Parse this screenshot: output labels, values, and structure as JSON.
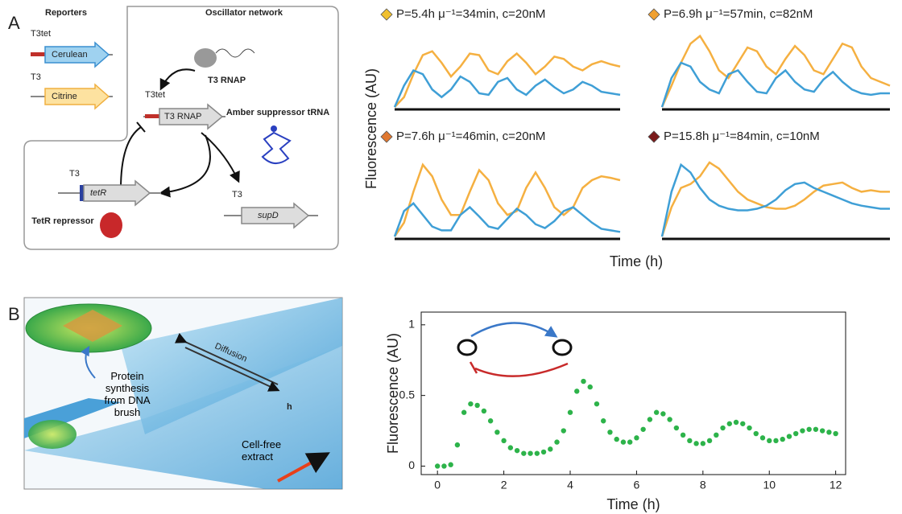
{
  "panel_labels": [
    "A",
    "B"
  ],
  "diagram_a": {
    "reporters": "Reporters",
    "oscillator_network": "Oscillator network",
    "promoter_t3tet_reporter": "T3tet",
    "cerulean": "Cerulean",
    "promoter_t3_reporter": "T3",
    "citrine": "Citrine",
    "t3_rnap_protein": "T3 RNAP",
    "promoter_t3tet": "T3tet",
    "t3_rnap_gene": "T3 RNAP",
    "amber_trna": "Amber suppressor tRNA",
    "promoter_t3_tetr": "T3",
    "tetr_gene": "tetR",
    "tetr_repressor": "TetR repressor",
    "promoter_t3_supd": "T3",
    "supd_gene": "supD"
  },
  "panel_a_axes": {
    "ylabel": "Fluorescence (AU)",
    "xlabel": "Time (h)"
  },
  "diagram_b": {
    "diffusion": "Diffusion",
    "height": "h",
    "protein_synthesis": "Protein synthesis from DNA brush",
    "cell_free": "Cell-free extract"
  },
  "chart_data": [
    {
      "type": "line",
      "title": "P=5.4h  μ⁻¹=34min, c=20nM",
      "marker_color": "#f0c030",
      "ylim": [
        0,
        1
      ],
      "series": [
        {
          "color": "#f5b041",
          "values": [
            0.02,
            0.15,
            0.45,
            0.7,
            0.75,
            0.6,
            0.42,
            0.55,
            0.72,
            0.7,
            0.5,
            0.45,
            0.62,
            0.72,
            0.6,
            0.45,
            0.55,
            0.68,
            0.65,
            0.55,
            0.5,
            0.58,
            0.62,
            0.58,
            0.55
          ]
        },
        {
          "color": "#3f9fd6",
          "values": [
            0.02,
            0.3,
            0.5,
            0.45,
            0.25,
            0.15,
            0.25,
            0.42,
            0.35,
            0.2,
            0.18,
            0.35,
            0.4,
            0.25,
            0.18,
            0.3,
            0.38,
            0.28,
            0.2,
            0.25,
            0.35,
            0.3,
            0.22,
            0.2,
            0.18
          ]
        }
      ]
    },
    {
      "type": "line",
      "title": "P=6.9h  μ⁻¹=57min, c=82nM",
      "marker_color": "#f0a030",
      "ylim": [
        0,
        1
      ],
      "series": [
        {
          "color": "#f5b041",
          "values": [
            0.02,
            0.3,
            0.6,
            0.85,
            0.95,
            0.75,
            0.5,
            0.4,
            0.6,
            0.8,
            0.75,
            0.55,
            0.45,
            0.65,
            0.82,
            0.7,
            0.5,
            0.45,
            0.65,
            0.85,
            0.8,
            0.55,
            0.4,
            0.35,
            0.3
          ]
        },
        {
          "color": "#3f9fd6",
          "values": [
            0.02,
            0.4,
            0.6,
            0.55,
            0.35,
            0.25,
            0.2,
            0.45,
            0.5,
            0.35,
            0.22,
            0.2,
            0.4,
            0.5,
            0.35,
            0.25,
            0.22,
            0.38,
            0.48,
            0.35,
            0.25,
            0.2,
            0.18,
            0.2,
            0.2
          ]
        }
      ]
    },
    {
      "type": "line",
      "title": "P=7.6h  μ⁻¹=46min, c=20nM",
      "marker_color": "#e07830",
      "ylim": [
        0,
        1
      ],
      "series": [
        {
          "color": "#f5b041",
          "values": [
            0.02,
            0.2,
            0.6,
            0.95,
            0.8,
            0.5,
            0.3,
            0.3,
            0.6,
            0.88,
            0.75,
            0.45,
            0.3,
            0.35,
            0.65,
            0.85,
            0.65,
            0.4,
            0.3,
            0.4,
            0.65,
            0.75,
            0.8,
            0.78,
            0.75
          ]
        },
        {
          "color": "#3f9fd6",
          "values": [
            0.02,
            0.35,
            0.45,
            0.3,
            0.15,
            0.1,
            0.1,
            0.3,
            0.4,
            0.28,
            0.15,
            0.12,
            0.25,
            0.38,
            0.3,
            0.18,
            0.13,
            0.22,
            0.35,
            0.4,
            0.3,
            0.2,
            0.12,
            0.1,
            0.08
          ]
        }
      ]
    },
    {
      "type": "line",
      "title": "P=15.8h  μ⁻¹=84min, c=10nM",
      "marker_color": "#7a1a1a",
      "ylim": [
        0,
        1
      ],
      "series": [
        {
          "color": "#f5b041",
          "values": [
            0.02,
            0.4,
            0.65,
            0.7,
            0.8,
            0.98,
            0.9,
            0.75,
            0.6,
            0.5,
            0.45,
            0.4,
            0.38,
            0.38,
            0.42,
            0.5,
            0.6,
            0.68,
            0.7,
            0.72,
            0.65,
            0.6,
            0.62,
            0.6,
            0.6
          ]
        },
        {
          "color": "#3f9fd6",
          "values": [
            0.02,
            0.6,
            0.95,
            0.85,
            0.65,
            0.5,
            0.42,
            0.38,
            0.36,
            0.36,
            0.38,
            0.42,
            0.5,
            0.62,
            0.7,
            0.72,
            0.65,
            0.6,
            0.55,
            0.5,
            0.45,
            0.42,
            0.4,
            0.38,
            0.38
          ]
        }
      ]
    },
    {
      "type": "scatter",
      "xlabel": "Time (h)",
      "ylabel": "Fluorescence (AU)",
      "color": "#2db34a",
      "xlim": [
        -0.49,
        12.3
      ],
      "ylim": [
        -0.06,
        1.09
      ],
      "xticks": [
        0,
        2,
        4,
        6,
        8,
        10,
        12
      ],
      "yticks": [
        0,
        0.5,
        1
      ],
      "x": [
        0,
        0.2,
        0.4,
        0.6,
        0.8,
        1,
        1.2,
        1.4,
        1.6,
        1.8,
        2,
        2.2,
        2.4,
        2.6,
        2.8,
        3,
        3.2,
        3.4,
        3.6,
        3.8,
        4,
        4.2,
        4.4,
        4.6,
        4.8,
        5,
        5.2,
        5.4,
        5.6,
        5.8,
        6,
        6.2,
        6.4,
        6.6,
        6.8,
        7,
        7.2,
        7.4,
        7.6,
        7.8,
        8,
        8.2,
        8.4,
        8.6,
        8.8,
        9,
        9.2,
        9.4,
        9.6,
        9.8,
        10,
        10.2,
        10.4,
        10.6,
        10.8,
        11,
        11.2,
        11.4,
        11.6,
        11.8,
        12
      ],
      "values": [
        0,
        0,
        0.01,
        0.15,
        0.38,
        0.44,
        0.43,
        0.39,
        0.32,
        0.24,
        0.18,
        0.13,
        0.11,
        0.09,
        0.09,
        0.09,
        0.1,
        0.12,
        0.17,
        0.25,
        0.38,
        0.53,
        0.6,
        0.56,
        0.44,
        0.32,
        0.24,
        0.19,
        0.17,
        0.17,
        0.2,
        0.26,
        0.33,
        0.38,
        0.37,
        0.33,
        0.27,
        0.22,
        0.18,
        0.16,
        0.16,
        0.18,
        0.22,
        0.27,
        0.3,
        0.31,
        0.3,
        0.27,
        0.23,
        0.2,
        0.18,
        0.18,
        0.19,
        0.21,
        0.23,
        0.25,
        0.26,
        0.26,
        0.25,
        0.24,
        0.23
      ]
    }
  ]
}
